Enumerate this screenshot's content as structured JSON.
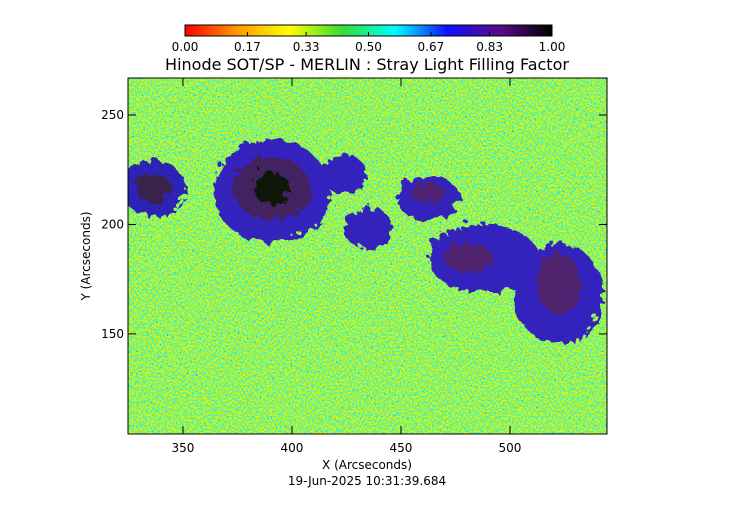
{
  "chart_data": {
    "type": "heatmap",
    "title": "Hinode SOT/SP - MERLIN : Stray Light Filling Factor",
    "x_label": "X (Arcseconds)",
    "y_label": "Y (Arcseconds)",
    "xlim": [
      324.8,
      544.5
    ],
    "ylim": [
      104.3,
      266.9
    ],
    "xticks": [
      350,
      400,
      450,
      500
    ],
    "yticks": [
      150,
      200,
      250
    ],
    "colorbar": {
      "lim": [
        0,
        1
      ],
      "ticks": [
        {
          "value": 0,
          "label": "0.00"
        },
        {
          "value": 0.17,
          "label": "0.17"
        },
        {
          "value": 0.33,
          "label": "0.33"
        },
        {
          "value": 0.5,
          "label": "0.50"
        },
        {
          "value": 0.67,
          "label": "0.67"
        },
        {
          "value": 0.83,
          "label": "0.83"
        },
        {
          "value": 1,
          "label": "1.00"
        }
      ],
      "colors": [
        "#ff0000",
        "#ff9900",
        "#ffff00",
        "#33dd33",
        "#00ffff",
        "#1010ff",
        "#5a0a8a",
        "#000000"
      ]
    }
  },
  "footer": "19-Jun-2025 10:31:39.684"
}
